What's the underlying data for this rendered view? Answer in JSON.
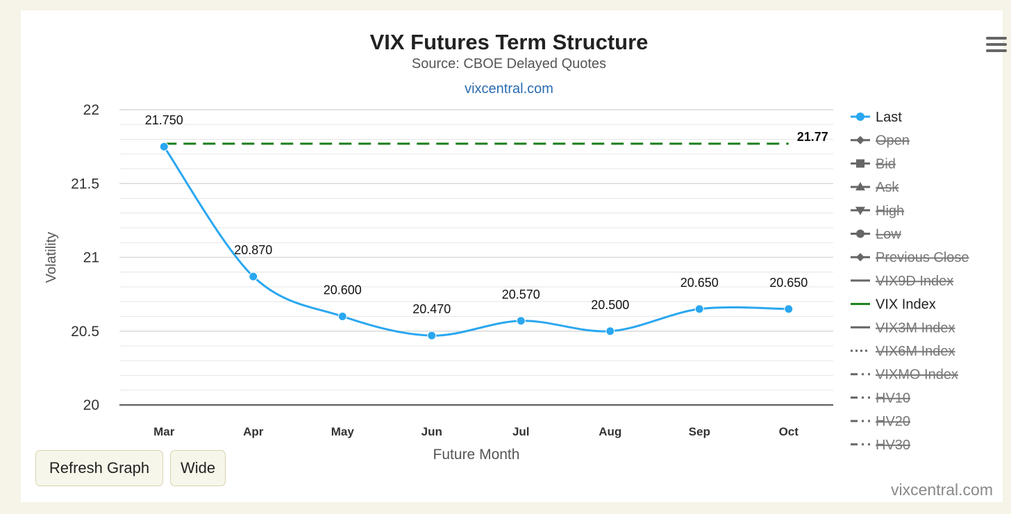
{
  "chart_data": {
    "type": "line",
    "title": "VIX Futures Term Structure",
    "subtitle": "Source: CBOE Delayed Quotes",
    "link": "vixcentral.com",
    "xlabel": "Future Month",
    "ylabel": "Volatility",
    "categories": [
      "Mar",
      "Apr",
      "May",
      "Jun",
      "Jul",
      "Aug",
      "Sep",
      "Oct"
    ],
    "ylim": [
      20,
      22
    ],
    "yticks": [
      "20",
      "20.5",
      "21",
      "21.5",
      "22"
    ],
    "grid": true,
    "series": [
      {
        "name": "Last",
        "color": "#2aa7f0",
        "values": [
          21.75,
          20.87,
          20.6,
          20.47,
          20.57,
          20.5,
          20.65,
          20.65
        ],
        "labels": [
          "21.750",
          "20.870",
          "20.600",
          "20.470",
          "20.570",
          "20.500",
          "20.650",
          "20.650"
        ]
      },
      {
        "name": "VIX Index",
        "color": "#1a7f1a",
        "style": "dashed",
        "value": 21.77,
        "label": "21.77"
      }
    ],
    "legend": {
      "position": "right",
      "items": [
        {
          "name": "Last",
          "symbol": "circle",
          "color": "#2aa7f0",
          "hidden": false
        },
        {
          "name": "Open",
          "symbol": "diamond",
          "color": "#666666",
          "hidden": true
        },
        {
          "name": "Bid",
          "symbol": "square",
          "color": "#666666",
          "hidden": true
        },
        {
          "name": "Ask",
          "symbol": "triangle",
          "color": "#666666",
          "hidden": true
        },
        {
          "name": "High",
          "symbol": "triangle-down",
          "color": "#666666",
          "hidden": true
        },
        {
          "name": "Low",
          "symbol": "circle",
          "color": "#666666",
          "hidden": true
        },
        {
          "name": "Previous Close",
          "symbol": "diamond",
          "color": "#666666",
          "hidden": true
        },
        {
          "name": "VIX9D Index",
          "symbol": "solid",
          "color": "#666666",
          "hidden": true
        },
        {
          "name": "VIX Index",
          "symbol": "solid",
          "color": "#1a7f1a",
          "hidden": false
        },
        {
          "name": "VIX3M Index",
          "symbol": "solid",
          "color": "#666666",
          "hidden": true
        },
        {
          "name": "VIX6M Index",
          "symbol": "dotted",
          "color": "#666666",
          "hidden": true
        },
        {
          "name": "VIXMO Index",
          "symbol": "dashdot",
          "color": "#666666",
          "hidden": true
        },
        {
          "name": "HV10",
          "symbol": "dashdot",
          "color": "#666666",
          "hidden": true
        },
        {
          "name": "HV20",
          "symbol": "dashdot",
          "color": "#666666",
          "hidden": true
        },
        {
          "name": "HV30",
          "symbol": "dashdot",
          "color": "#666666",
          "hidden": true
        }
      ]
    }
  },
  "controls": {
    "menu_icon": "hamburger-menu-icon",
    "refresh_label": "Refresh Graph",
    "wide_label": "Wide"
  },
  "watermark": "vixcentral.com",
  "colors": {
    "page_background": "#f6f4e8",
    "button_background": "#f7f6ea",
    "link": "#2b6cb0"
  }
}
